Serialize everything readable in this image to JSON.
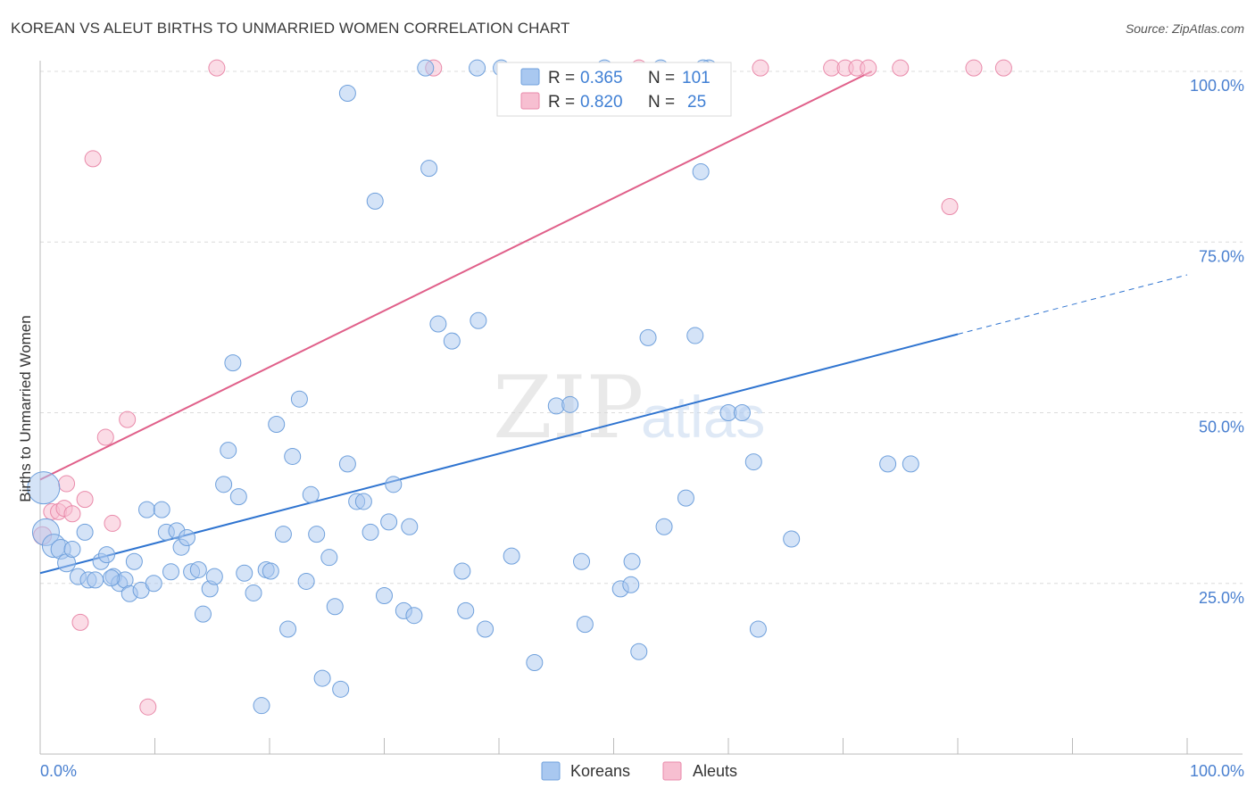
{
  "title": "KOREAN VS ALEUT BIRTHS TO UNMARRIED WOMEN CORRELATION CHART",
  "source": "Source: ZipAtlas.com",
  "watermark": {
    "zip": "ZIP",
    "atlas": "atlas"
  },
  "colors": {
    "koreans_fill": "#a9c8f0",
    "koreans_stroke": "#6fa0dc",
    "koreans_line": "#2f74d0",
    "aleuts_fill": "#f7bfd1",
    "aleuts_stroke": "#e98aaa",
    "aleuts_line": "#e0608a",
    "grid": "#dcdcdc",
    "axis_text": "#4a80d0"
  },
  "legend": {
    "rows": [
      {
        "r_label": "R =",
        "r_value": "0.365",
        "n_label": "N =",
        "n_value": "101"
      },
      {
        "r_label": "R =",
        "r_value": "0.820",
        "n_label": "N =",
        "n_value": "25"
      }
    ]
  },
  "bottom_legend": {
    "koreans": "Koreans",
    "aleuts": "Aleuts"
  },
  "chart_data": {
    "type": "scatter",
    "title": "KOREAN VS ALEUT BIRTHS TO UNMARRIED WOMEN CORRELATION CHART",
    "xlabel": "",
    "ylabel": "Births to Unmarried Women",
    "xlim": [
      0,
      100
    ],
    "ylim": [
      0,
      102
    ],
    "x_tick_labels": [
      "0.0%",
      "100.0%"
    ],
    "y_tick_labels": [
      "25.0%",
      "50.0%",
      "75.0%",
      "100.0%"
    ],
    "y_ticks": [
      25,
      50,
      75,
      100
    ],
    "grid": true,
    "legend_position": "top-center",
    "series": [
      {
        "name": "Koreans",
        "r": 0.365,
        "n": 101,
        "trend": {
          "x0": 0,
          "y0": 26.5,
          "x1": 80,
          "y1": 61.5,
          "dash_to_x": 100,
          "dash_to_y": 70.2
        },
        "points": [
          [
            0.3,
            39,
            18
          ],
          [
            0.5,
            32.5,
            15
          ],
          [
            1.2,
            30.5,
            13
          ],
          [
            1.8,
            30,
            11
          ],
          [
            2.3,
            28,
            10
          ],
          [
            2.8,
            30,
            9
          ],
          [
            3.3,
            26,
            9
          ],
          [
            3.9,
            32.5,
            9
          ],
          [
            4.2,
            25.5,
            9
          ],
          [
            4.8,
            25.5,
            9
          ],
          [
            5.3,
            28.2,
            9
          ],
          [
            5.8,
            29.2,
            9
          ],
          [
            6.4,
            26,
            9
          ],
          [
            6.9,
            25,
            9
          ],
          [
            7.4,
            25.5,
            9
          ],
          [
            7.8,
            23.5,
            9
          ],
          [
            8.2,
            28.2,
            9
          ],
          [
            8.8,
            24,
            9
          ],
          [
            9.3,
            35.8,
            9
          ],
          [
            9.9,
            25,
            9
          ],
          [
            10.6,
            35.8,
            9
          ],
          [
            11.0,
            32.5,
            9
          ],
          [
            11.4,
            26.7,
            9
          ],
          [
            11.9,
            32.7,
            9
          ],
          [
            12.3,
            30.3,
            9
          ],
          [
            12.8,
            31.7,
            9
          ],
          [
            13.2,
            26.7,
            9
          ],
          [
            13.8,
            27.0,
            9
          ],
          [
            14.2,
            20.5,
            9
          ],
          [
            14.8,
            24.2,
            9
          ],
          [
            15.2,
            26.0,
            9
          ],
          [
            16.0,
            39.5,
            9
          ],
          [
            16.4,
            44.5,
            9
          ],
          [
            16.8,
            57.3,
            9
          ],
          [
            17.3,
            37.7,
            9
          ],
          [
            17.8,
            26.5,
            9
          ],
          [
            18.6,
            23.6,
            9
          ],
          [
            19.3,
            7.1,
            9
          ],
          [
            19.7,
            27.0,
            9
          ],
          [
            20.1,
            26.8,
            9
          ],
          [
            20.6,
            48.3,
            9
          ],
          [
            21.2,
            32.2,
            9
          ],
          [
            21.6,
            18.3,
            9
          ],
          [
            22.0,
            43.6,
            9
          ],
          [
            22.6,
            52.0,
            9
          ],
          [
            23.2,
            25.3,
            9
          ],
          [
            23.6,
            38.0,
            9
          ],
          [
            24.1,
            32.2,
            9
          ],
          [
            24.6,
            11.1,
            9
          ],
          [
            25.2,
            28.8,
            9
          ],
          [
            25.7,
            21.6,
            9
          ],
          [
            26.2,
            9.5,
            9
          ],
          [
            26.8,
            42.5,
            9
          ],
          [
            26.8,
            96.8,
            9
          ],
          [
            27.6,
            37.0,
            9
          ],
          [
            28.2,
            37.0,
            9
          ],
          [
            28.8,
            32.5,
            9
          ],
          [
            29.2,
            81.0,
            9
          ],
          [
            30.0,
            23.2,
            9
          ],
          [
            30.4,
            34.0,
            9
          ],
          [
            30.8,
            39.5,
            9
          ],
          [
            31.7,
            21.0,
            9
          ],
          [
            32.6,
            20.3,
            9
          ],
          [
            32.2,
            33.3,
            9
          ],
          [
            33.6,
            100.5,
            9
          ],
          [
            33.9,
            85.8,
            9
          ],
          [
            34.7,
            63.0,
            9
          ],
          [
            35.9,
            60.5,
            9
          ],
          [
            36.8,
            26.8,
            9
          ],
          [
            37.1,
            21.0,
            9
          ],
          [
            38.2,
            63.5,
            9
          ],
          [
            38.8,
            18.3,
            9
          ],
          [
            40.2,
            100.5,
            9
          ],
          [
            41.1,
            29.0,
            9
          ],
          [
            43.1,
            13.4,
            9
          ],
          [
            45.0,
            51.0,
            9
          ],
          [
            46.2,
            51.2,
            9
          ],
          [
            47.2,
            28.2,
            9
          ],
          [
            47.5,
            19.0,
            9
          ],
          [
            49.2,
            100.5,
            9
          ],
          [
            50.6,
            24.2,
            9
          ],
          [
            51.5,
            24.8,
            9
          ],
          [
            52.2,
            15.0,
            9
          ],
          [
            53.0,
            61.0,
            9
          ],
          [
            54.1,
            100.5,
            9
          ],
          [
            54.4,
            33.3,
            9
          ],
          [
            56.3,
            37.5,
            9
          ],
          [
            57.1,
            61.3,
            9
          ],
          [
            57.6,
            85.3,
            9
          ],
          [
            58.3,
            100.5,
            9
          ],
          [
            57.8,
            100.5,
            9
          ],
          [
            60.0,
            50.0,
            9
          ],
          [
            61.2,
            50.0,
            9
          ],
          [
            62.2,
            42.8,
            9
          ],
          [
            62.6,
            18.3,
            9
          ],
          [
            65.5,
            31.5,
            9
          ],
          [
            73.9,
            42.5,
            9
          ],
          [
            75.9,
            42.5,
            9
          ],
          [
            38.1,
            100.5,
            9
          ],
          [
            51.6,
            28.2,
            9
          ],
          [
            6.2,
            25.8,
            9
          ]
        ]
      },
      {
        "name": "Aleuts",
        "r": 0.82,
        "n": 25,
        "trend": {
          "x0": 0,
          "y0": 40.2,
          "x1": 72.5,
          "y1": 100
        },
        "points": [
          [
            0.2,
            32,
            10
          ],
          [
            1.0,
            35.5,
            9
          ],
          [
            1.6,
            35.5,
            9
          ],
          [
            2.1,
            36,
            9
          ],
          [
            2.3,
            39.6,
            9
          ],
          [
            2.8,
            35.2,
            9
          ],
          [
            3.5,
            19.3,
            9
          ],
          [
            3.9,
            37.3,
            9
          ],
          [
            4.6,
            87.2,
            9
          ],
          [
            5.7,
            46.4,
            9
          ],
          [
            6.3,
            33.8,
            9
          ],
          [
            7.6,
            49.0,
            9
          ],
          [
            9.4,
            6.9,
            9
          ],
          [
            15.4,
            100.5,
            9
          ],
          [
            34.3,
            100.5,
            9
          ],
          [
            52.2,
            100.5,
            9
          ],
          [
            62.8,
            100.5,
            9
          ],
          [
            69.0,
            100.5,
            9
          ],
          [
            70.2,
            100.5,
            9
          ],
          [
            71.2,
            100.5,
            9
          ],
          [
            72.2,
            100.5,
            9
          ],
          [
            75.0,
            100.5,
            9
          ],
          [
            81.4,
            100.5,
            9
          ],
          [
            84.0,
            100.5,
            9
          ],
          [
            79.3,
            80.2,
            9
          ]
        ]
      }
    ]
  }
}
